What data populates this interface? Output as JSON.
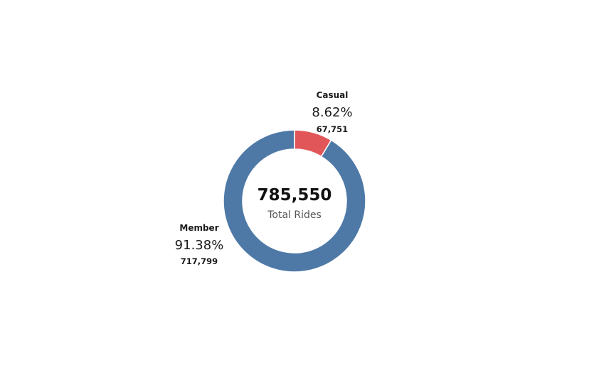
{
  "chart_data": {
    "type": "pie",
    "style": "donut",
    "categories": [
      "Casual",
      "Member"
    ],
    "values": [
      67751,
      717799
    ],
    "value_labels": [
      "67,751",
      "717,799"
    ],
    "percent_labels": [
      "8.62%",
      "91.38%"
    ],
    "colors": [
      "#e15759",
      "#4e79a7"
    ],
    "center": {
      "total": "785,550",
      "caption": "Total Rides"
    },
    "title": "",
    "legend": "none"
  }
}
